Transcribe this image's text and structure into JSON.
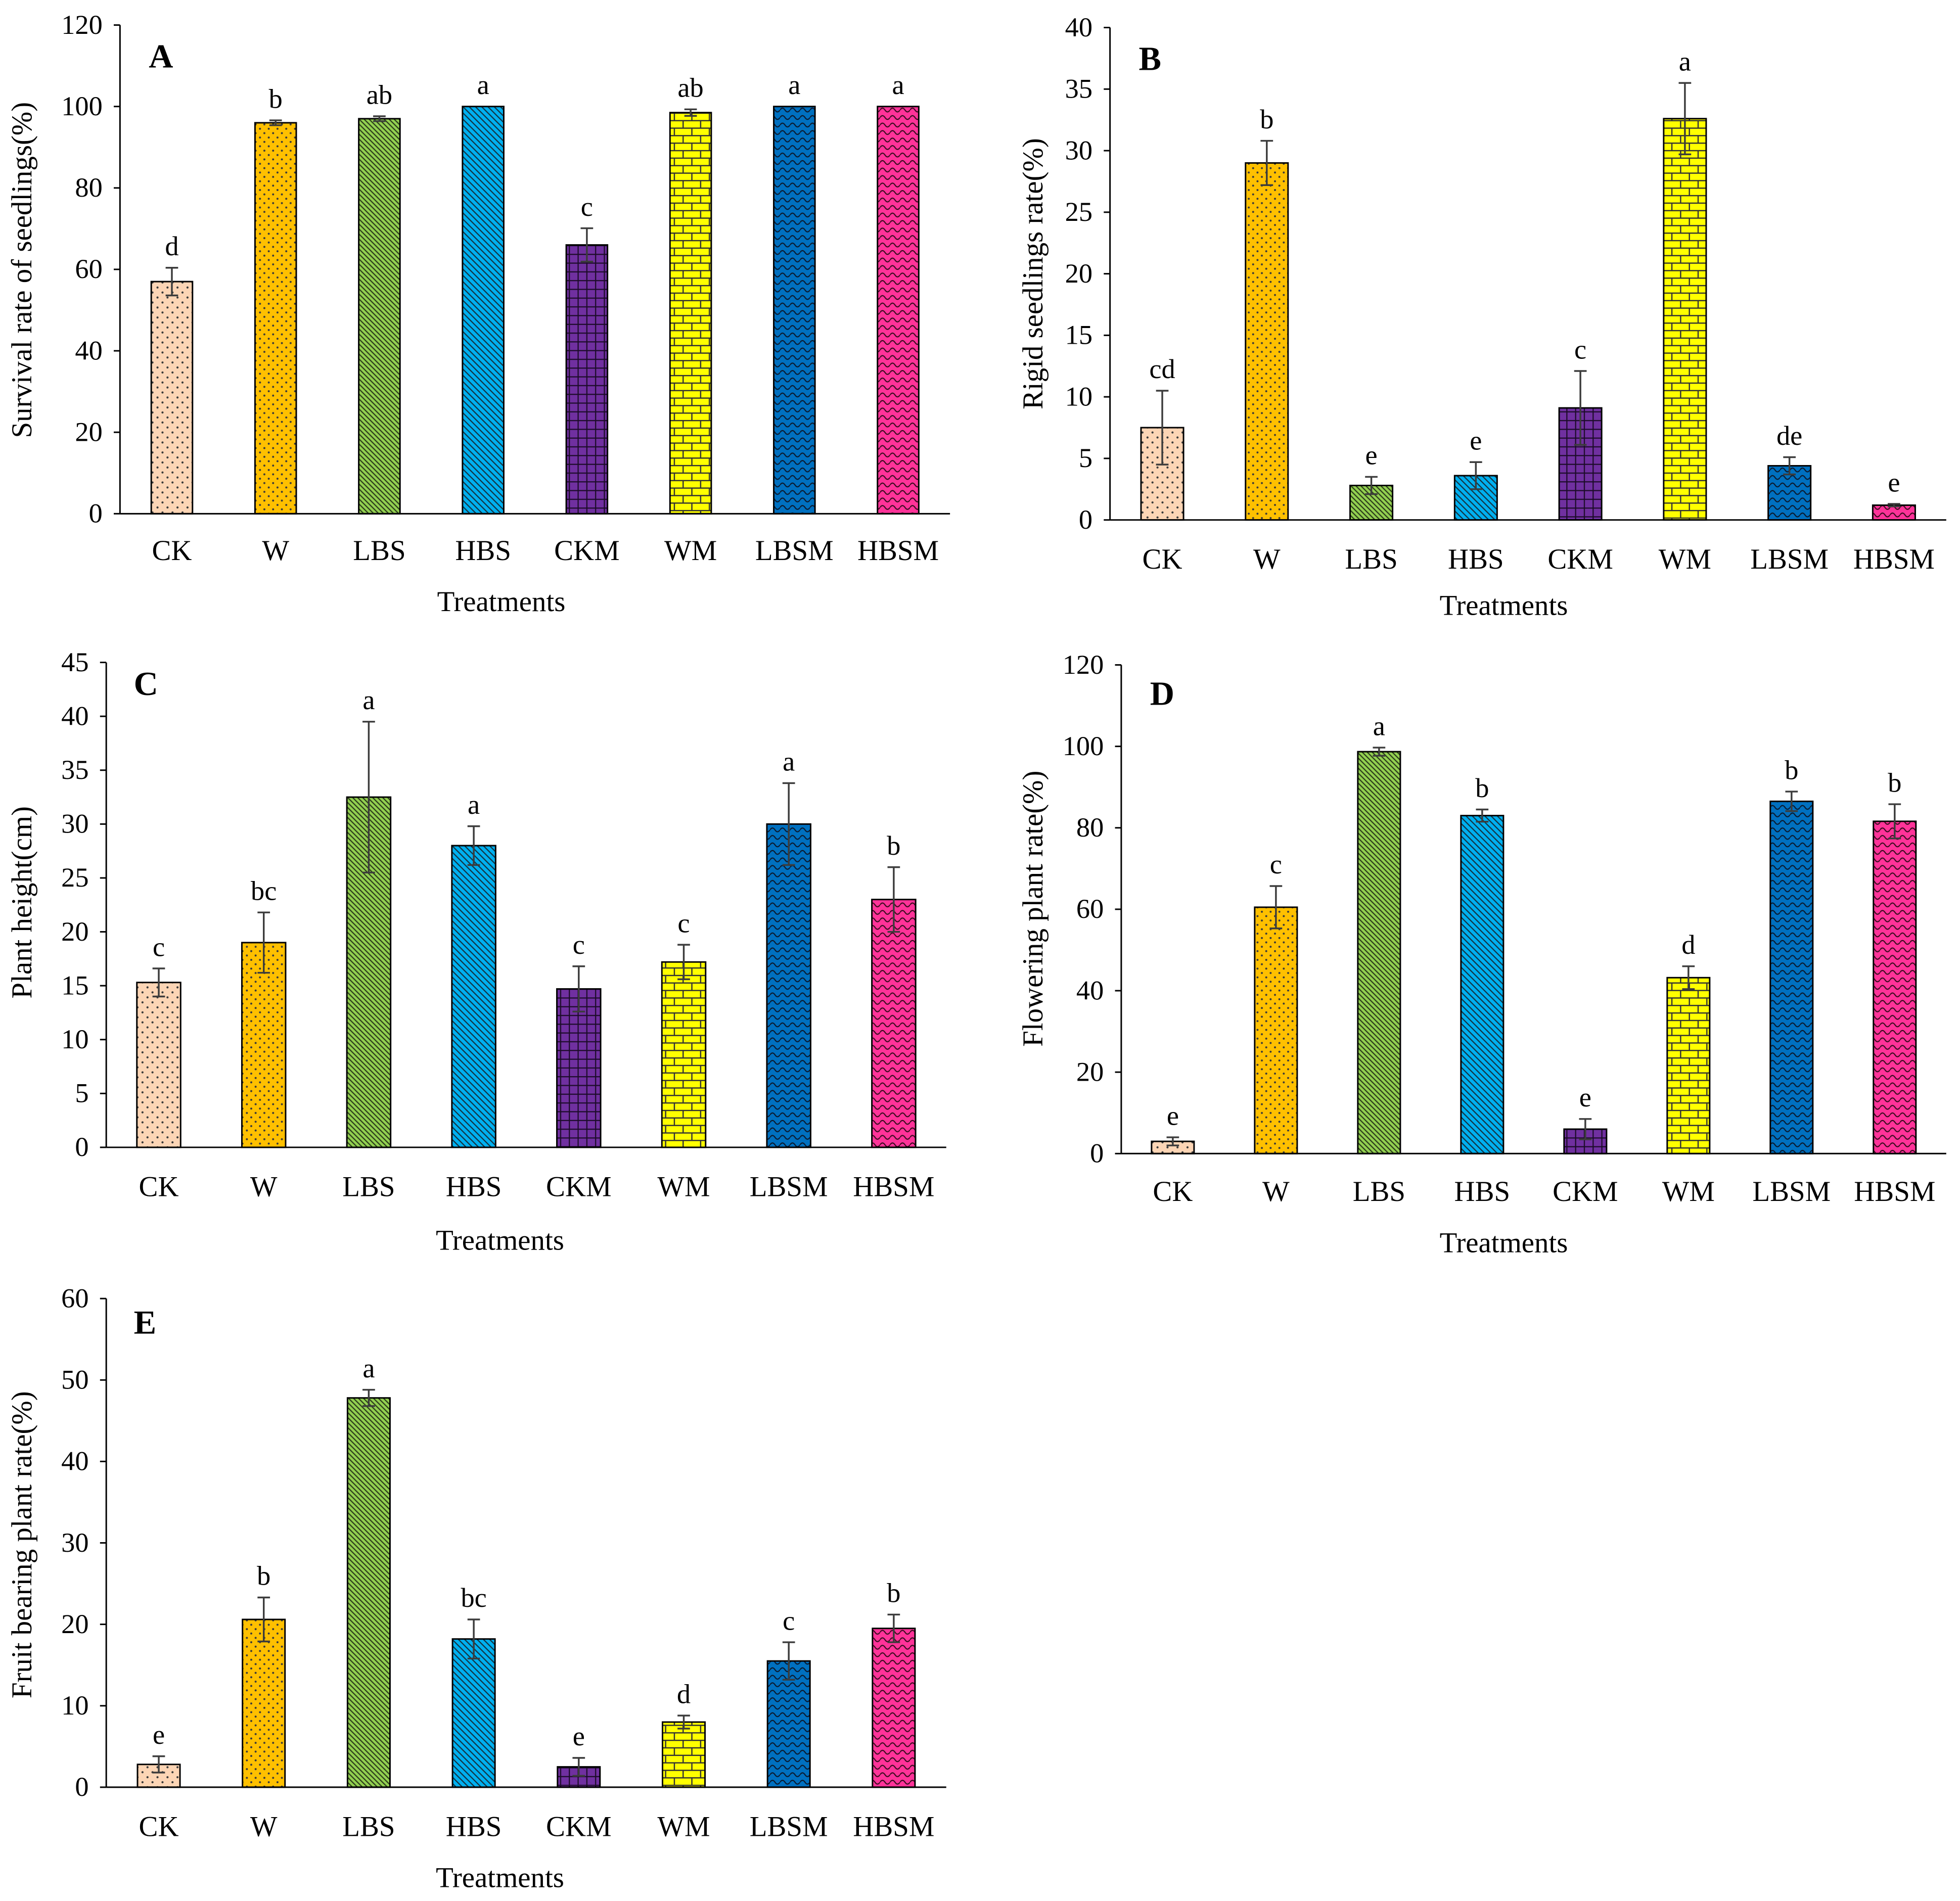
{
  "treatment_colors": {
    "CK": "#FCD5B5",
    "W": "#FFC000",
    "LBS": "#92D050",
    "HBS": "#00B0F0",
    "CKM": "#7030A0",
    "WM": "#FFFF00",
    "LBSM": "#0070C0",
    "HBSM": "#FF3399"
  },
  "chart_data": [
    {
      "panel": "A",
      "type": "bar",
      "xlabel": "Treatments",
      "ylabel": "Survival rate of seedlings(%)",
      "ylim": [
        0,
        120
      ],
      "yticks": [
        0,
        20,
        40,
        60,
        80,
        100,
        120
      ],
      "grid": false,
      "categories": [
        "CK",
        "W",
        "LBS",
        "HBS",
        "CKM",
        "WM",
        "LBSM",
        "HBSM"
      ],
      "values": [
        57.0,
        96.0,
        97.0,
        100.0,
        66.0,
        98.5,
        100.0,
        100.0
      ],
      "errors": [
        3.4,
        0.6,
        0.6,
        0,
        4.1,
        0.8,
        0,
        0
      ],
      "letters": [
        "d",
        "b",
        "ab",
        "a",
        "c",
        "ab",
        "a",
        "a"
      ]
    },
    {
      "panel": "B",
      "type": "bar",
      "xlabel": "Treatments",
      "ylabel": "Rigid seedlings rate(%)",
      "ylim": [
        0,
        40
      ],
      "yticks": [
        0,
        5,
        10,
        15,
        20,
        25,
        30,
        35,
        40
      ],
      "grid": false,
      "categories": [
        "CK",
        "W",
        "LBS",
        "HBS",
        "CKM",
        "WM",
        "LBSM",
        "HBSM"
      ],
      "values": [
        7.5,
        29.0,
        2.8,
        3.6,
        9.1,
        32.6,
        4.4,
        1.2
      ],
      "errors": [
        3.0,
        1.8,
        0.7,
        1.1,
        3.0,
        2.9,
        0.7,
        0.1
      ],
      "letters": [
        "cd",
        "b",
        "e",
        "e",
        "c",
        "a",
        "de",
        "e"
      ]
    },
    {
      "panel": "C",
      "type": "bar",
      "xlabel": "Treatments",
      "ylabel": "Plant height(cm)",
      "ylim": [
        0,
        45
      ],
      "yticks": [
        0,
        5,
        10,
        15,
        20,
        25,
        30,
        35,
        40,
        45
      ],
      "grid": false,
      "categories": [
        "CK",
        "W",
        "LBS",
        "HBS",
        "CKM",
        "WM",
        "LBSM",
        "HBSM"
      ],
      "values": [
        15.3,
        19.0,
        32.5,
        28.0,
        14.7,
        17.2,
        30.0,
        23.0
      ],
      "errors": [
        1.3,
        2.8,
        7.0,
        1.8,
        2.1,
        1.6,
        3.8,
        3.0
      ],
      "letters": [
        "c",
        "bc",
        "a",
        "a",
        "c",
        "c",
        "a",
        "b"
      ]
    },
    {
      "panel": "D",
      "type": "bar",
      "xlabel": "Treatments",
      "ylabel": "Flowering plant rate(%)",
      "ylim": [
        0,
        120
      ],
      "yticks": [
        0,
        20,
        40,
        60,
        80,
        100,
        120
      ],
      "grid": false,
      "categories": [
        "CK",
        "W",
        "LBS",
        "HBS",
        "CKM",
        "WM",
        "LBSM",
        "HBSM"
      ],
      "values": [
        3.0,
        60.5,
        98.7,
        83.0,
        6.0,
        43.2,
        86.5,
        81.6
      ],
      "errors": [
        1.0,
        5.2,
        1.0,
        1.5,
        2.5,
        2.8,
        2.4,
        4.2
      ],
      "letters": [
        "e",
        "c",
        "a",
        "b",
        "e",
        "d",
        "b",
        "b"
      ]
    },
    {
      "panel": "E",
      "type": "bar",
      "xlabel": "Treatments",
      "ylabel": "Fruit bearing plant rate(%)",
      "ylim": [
        0,
        60
      ],
      "yticks": [
        0,
        10,
        20,
        30,
        40,
        50,
        60
      ],
      "grid": false,
      "categories": [
        "CK",
        "W",
        "LBS",
        "HBS",
        "CKM",
        "WM",
        "LBSM",
        "HBSM"
      ],
      "values": [
        2.8,
        20.6,
        47.8,
        18.2,
        2.5,
        8.0,
        15.5,
        19.5
      ],
      "errors": [
        1.0,
        2.7,
        1.0,
        2.4,
        1.1,
        0.8,
        2.3,
        1.7
      ],
      "letters": [
        "e",
        "b",
        "a",
        "bc",
        "e",
        "d",
        "c",
        "b"
      ]
    }
  ]
}
